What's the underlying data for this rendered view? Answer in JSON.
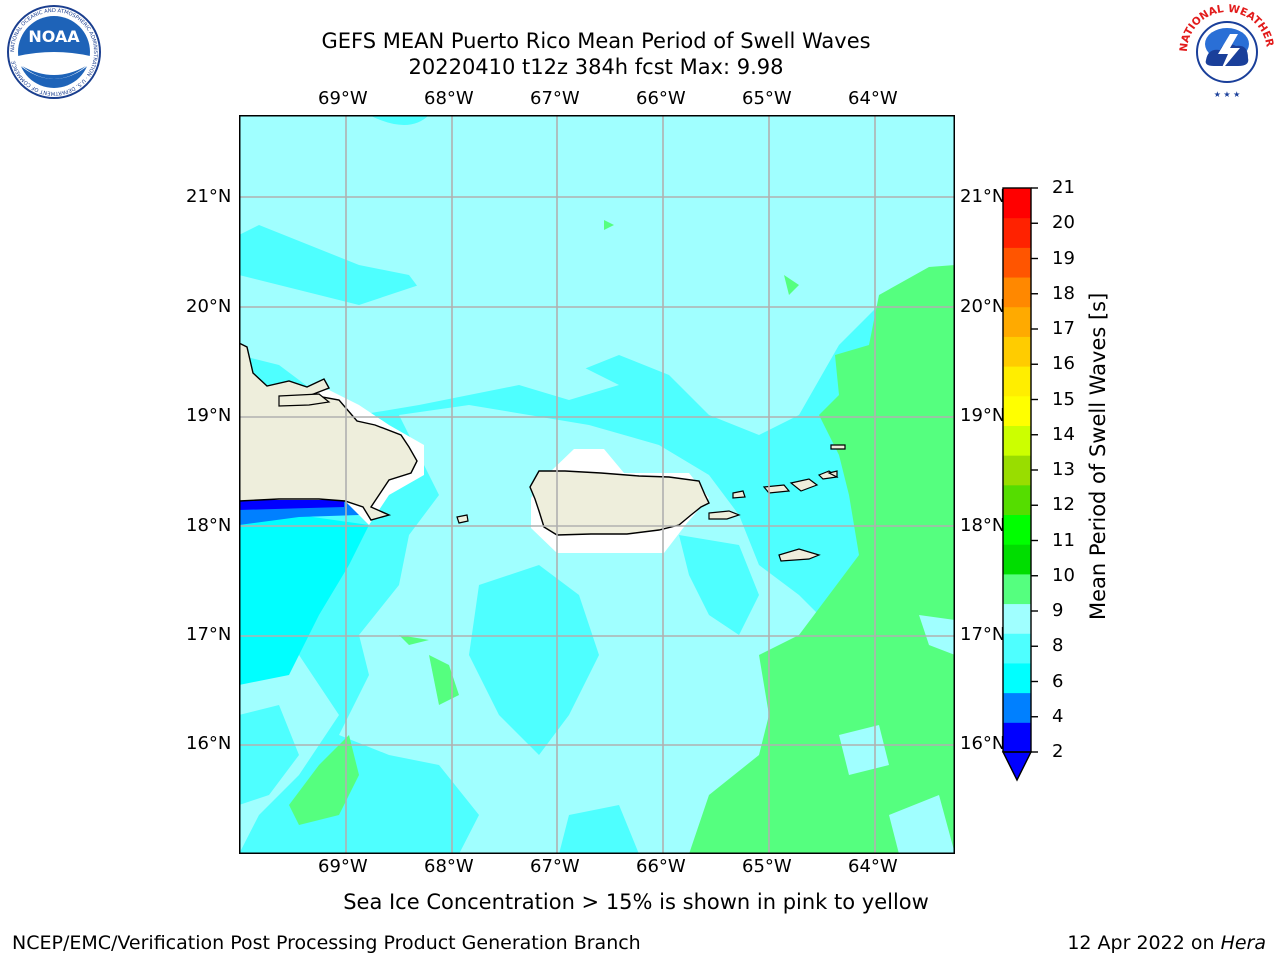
{
  "title": {
    "line1": "GEFS MEAN Puerto Rico Mean Period of Swell Waves",
    "line2": "20220410 t12z 384h fcst   Max: 9.98"
  },
  "logos": {
    "left": "noara-logo-icon",
    "right": "nws-logo-icon",
    "left_ring_text": "NATIONAL OCEANIC AND ATMOSPHERIC ADMINISTRATION · U.S. DEPARTMENT OF COMMERCE",
    "left_center_text": "NOAA",
    "right_ring_text": "NATIONAL WEATHER SERVICE"
  },
  "map": {
    "lon_labels": [
      "69°W",
      "68°W",
      "67°W",
      "66°W",
      "65°W",
      "64°W"
    ],
    "lat_labels": [
      "21°N",
      "20°N",
      "19°N",
      "18°N",
      "17°N",
      "16°N"
    ],
    "land_color": "#eeeedc",
    "ocean_base_color": "#4effff"
  },
  "colorbar": {
    "title": "Mean Period of Swell Waves [s]",
    "ticks": [
      "21",
      "20",
      "19",
      "18",
      "17",
      "16",
      "15",
      "14",
      "13",
      "12",
      "11",
      "10",
      "9",
      "8",
      "6",
      "4",
      "2"
    ],
    "colors": [
      "#0000ff",
      "#0080ff",
      "#00ffff",
      "#4effff",
      "#a0ffff",
      "#55ff7f",
      "#00dd00",
      "#00ff00",
      "#55dd00",
      "#99dd00",
      "#ccff00",
      "#ffff00",
      "#ffee00",
      "#ffcc00",
      "#ffaa00",
      "#ff8800",
      "#ff5500",
      "#ff2200",
      "#ff0000"
    ]
  },
  "note": "Sea Ice Concentration > 15% is shown in pink to yellow",
  "footer": {
    "left": "NCEP/EMC/Verification Post Processing Product Generation Branch",
    "date": "12 Apr 2022 on ",
    "machine": "Hera"
  }
}
